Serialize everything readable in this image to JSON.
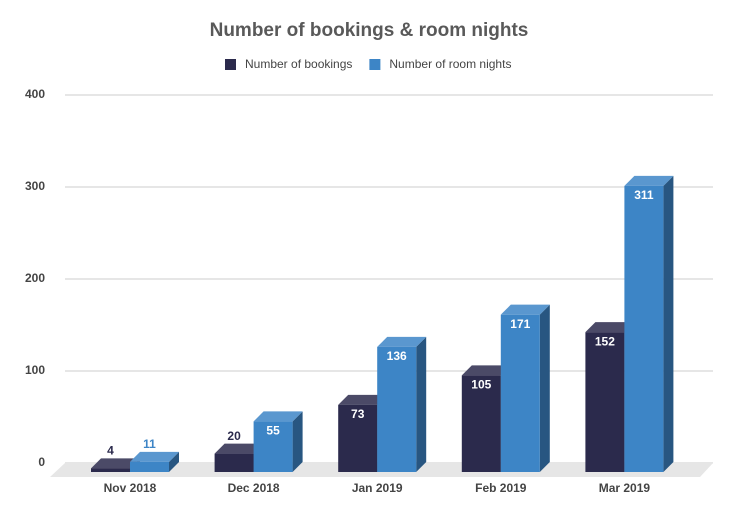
{
  "chart_data": {
    "type": "bar3d",
    "title": "Number of bookings & room nights",
    "categories": [
      "Nov 2018",
      "Dec 2018",
      "Jan 2019",
      "Feb 2019",
      "Mar 2019"
    ],
    "series": [
      {
        "name": "Number of bookings",
        "color": "#2b2a4c",
        "values": [
          4,
          20,
          73,
          105,
          152
        ]
      },
      {
        "name": "Number of room nights",
        "color": "#3d85c6",
        "values": [
          11,
          55,
          136,
          171,
          311
        ]
      }
    ],
    "ylim": [
      0,
      400
    ],
    "yticks": [
      0,
      100,
      200,
      300,
      400
    ],
    "grid": true
  }
}
